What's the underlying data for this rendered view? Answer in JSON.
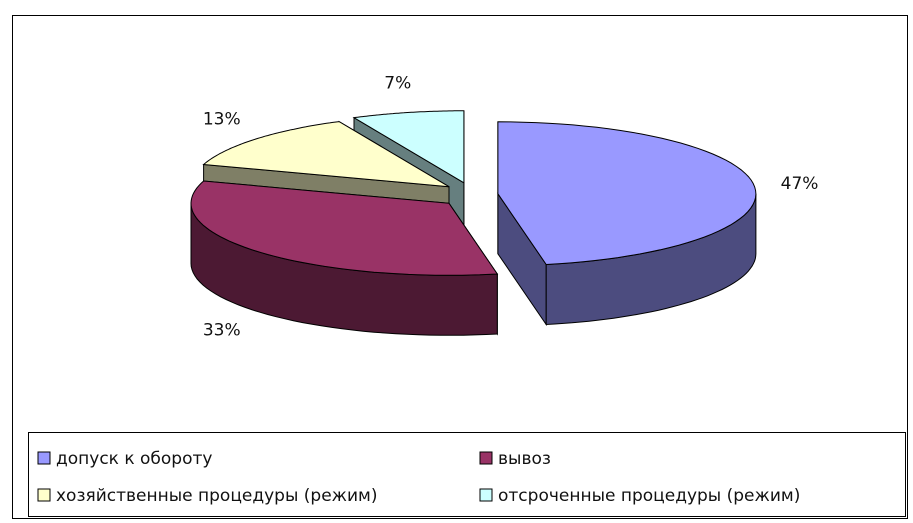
{
  "chart_data": {
    "type": "pie",
    "three_d": true,
    "categories": [
      "допуск к обороту",
      "вывоз",
      "хозяйственные процедуры (режим)",
      "отсроченные процедуры (режим)"
    ],
    "values": [
      47,
      33,
      13,
      7
    ],
    "value_labels": [
      "47%",
      "33%",
      "13%",
      "7%"
    ],
    "colors": [
      "#9999ff",
      "#993366",
      "#ffffcc",
      "#ccffff"
    ],
    "legend": "bottom"
  }
}
